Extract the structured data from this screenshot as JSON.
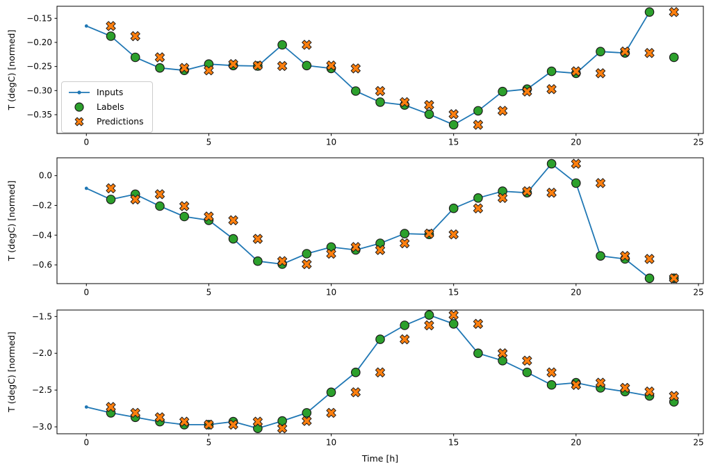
{
  "figure": {
    "xlabel": "Time [h]",
    "colors": {
      "inputs": "#1f77b4",
      "labels": "#2ca02c",
      "predictions": "#ff7f0e",
      "marker_edge": "#1a1a1a",
      "axes": "#000000",
      "legend_border": "#cccccc"
    },
    "legend": {
      "items": [
        "Inputs",
        "Labels",
        "Predictions"
      ],
      "position": "upper left of first subplot"
    }
  },
  "chart_data": [
    {
      "type": "line",
      "subplot": 1,
      "ylabel": "T (degC) [normed]",
      "xlim": [
        -1.2,
        25.2
      ],
      "ylim": [
        -0.389,
        -0.125
      ],
      "grid": false,
      "x_ticks": [
        0,
        5,
        10,
        15,
        20,
        25
      ],
      "x_tick_labels": [
        "0",
        "5",
        "10",
        "15",
        "20",
        "25"
      ],
      "y_ticks": [
        -0.15,
        -0.2,
        -0.25,
        -0.3,
        -0.35
      ],
      "y_tick_labels": [
        "−0.15",
        "−0.20",
        "−0.25",
        "−0.30",
        "−0.35"
      ],
      "series": [
        {
          "name": "Inputs",
          "style": "line-with-dots",
          "x": [
            0,
            1,
            2,
            3,
            4,
            5,
            6,
            7,
            8,
            9,
            10,
            11,
            12,
            13,
            14,
            15,
            16,
            17,
            18,
            19,
            20,
            21,
            22,
            23
          ],
          "y": [
            -0.166,
            -0.187,
            -0.231,
            -0.253,
            -0.258,
            -0.245,
            -0.248,
            -0.249,
            -0.205,
            -0.248,
            -0.254,
            -0.301,
            -0.324,
            -0.33,
            -0.349,
            -0.371,
            -0.342,
            -0.302,
            -0.297,
            -0.26,
            -0.264,
            -0.219,
            -0.222,
            -0.137
          ]
        },
        {
          "name": "Labels",
          "style": "scatter-circle",
          "x": [
            1,
            2,
            3,
            4,
            5,
            6,
            7,
            8,
            9,
            10,
            11,
            12,
            13,
            14,
            15,
            16,
            17,
            18,
            19,
            20,
            21,
            22,
            23,
            24
          ],
          "y": [
            -0.187,
            -0.231,
            -0.253,
            -0.258,
            -0.245,
            -0.248,
            -0.249,
            -0.205,
            -0.248,
            -0.254,
            -0.301,
            -0.324,
            -0.33,
            -0.349,
            -0.371,
            -0.342,
            -0.302,
            -0.297,
            -0.26,
            -0.264,
            -0.219,
            -0.222,
            -0.137,
            -0.231
          ]
        },
        {
          "name": "Predictions",
          "style": "scatter-x",
          "x": [
            1,
            2,
            3,
            4,
            5,
            6,
            7,
            8,
            9,
            10,
            11,
            12,
            13,
            14,
            15,
            16,
            17,
            18,
            19,
            20,
            21,
            22,
            23,
            24
          ],
          "y": [
            -0.166,
            -0.187,
            -0.231,
            -0.253,
            -0.258,
            -0.245,
            -0.248,
            -0.249,
            -0.205,
            -0.248,
            -0.254,
            -0.301,
            -0.324,
            -0.33,
            -0.349,
            -0.371,
            -0.342,
            -0.302,
            -0.297,
            -0.26,
            -0.264,
            -0.219,
            -0.222,
            -0.137
          ]
        }
      ]
    },
    {
      "type": "line",
      "subplot": 2,
      "ylabel": "T (degC) [normed]",
      "xlim": [
        -1.2,
        25.2
      ],
      "ylim": [
        -0.726,
        0.12
      ],
      "grid": false,
      "x_ticks": [
        0,
        5,
        10,
        15,
        20,
        25
      ],
      "x_tick_labels": [
        "0",
        "5",
        "10",
        "15",
        "20",
        "25"
      ],
      "y_ticks": [
        0.0,
        -0.2,
        -0.4,
        -0.6
      ],
      "y_tick_labels": [
        "0.0",
        "−0.2",
        "−0.4",
        "−0.6"
      ],
      "series": [
        {
          "name": "Inputs",
          "style": "line-with-dots",
          "x": [
            0,
            1,
            2,
            3,
            4,
            5,
            6,
            7,
            8,
            9,
            10,
            11,
            12,
            13,
            14,
            15,
            16,
            17,
            18,
            19,
            20,
            21,
            22,
            23
          ],
          "y": [
            -0.085,
            -0.16,
            -0.125,
            -0.205,
            -0.275,
            -0.3,
            -0.425,
            -0.575,
            -0.595,
            -0.525,
            -0.48,
            -0.5,
            -0.455,
            -0.39,
            -0.395,
            -0.22,
            -0.15,
            -0.105,
            -0.115,
            0.08,
            -0.05,
            -0.54,
            -0.56,
            -0.69
          ]
        },
        {
          "name": "Labels",
          "style": "scatter-circle",
          "x": [
            1,
            2,
            3,
            4,
            5,
            6,
            7,
            8,
            9,
            10,
            11,
            12,
            13,
            14,
            15,
            16,
            17,
            18,
            19,
            20,
            21,
            22,
            23,
            24
          ],
          "y": [
            -0.16,
            -0.125,
            -0.205,
            -0.275,
            -0.3,
            -0.425,
            -0.575,
            -0.595,
            -0.525,
            -0.48,
            -0.5,
            -0.455,
            -0.39,
            -0.395,
            -0.22,
            -0.15,
            -0.105,
            -0.115,
            0.08,
            -0.05,
            -0.54,
            -0.56,
            -0.69,
            -0.69
          ]
        },
        {
          "name": "Predictions",
          "style": "scatter-x",
          "x": [
            1,
            2,
            3,
            4,
            5,
            6,
            7,
            8,
            9,
            10,
            11,
            12,
            13,
            14,
            15,
            16,
            17,
            18,
            19,
            20,
            21,
            22,
            23,
            24
          ],
          "y": [
            -0.085,
            -0.16,
            -0.125,
            -0.205,
            -0.275,
            -0.3,
            -0.425,
            -0.575,
            -0.595,
            -0.525,
            -0.48,
            -0.5,
            -0.455,
            -0.39,
            -0.395,
            -0.22,
            -0.15,
            -0.105,
            -0.115,
            0.08,
            -0.05,
            -0.54,
            -0.56,
            -0.69
          ]
        }
      ]
    },
    {
      "type": "line",
      "subplot": 3,
      "ylabel": "T (degC) [normed]",
      "xlim": [
        -1.2,
        25.2
      ],
      "ylim": [
        -3.094,
        -1.412
      ],
      "grid": false,
      "x_ticks": [
        0,
        5,
        10,
        15,
        20,
        25
      ],
      "x_tick_labels": [
        "0",
        "5",
        "10",
        "15",
        "20",
        "25"
      ],
      "y_ticks": [
        -1.5,
        -2.0,
        -2.5,
        -3.0
      ],
      "y_tick_labels": [
        "−1.5",
        "−2.0",
        "−2.5",
        "−3.0"
      ],
      "series": [
        {
          "name": "Inputs",
          "style": "line-with-dots",
          "x": [
            0,
            1,
            2,
            3,
            4,
            5,
            6,
            7,
            8,
            9,
            10,
            11,
            12,
            13,
            14,
            15,
            16,
            17,
            18,
            19,
            20,
            21,
            22,
            23
          ],
          "y": [
            -2.73,
            -2.81,
            -2.87,
            -2.93,
            -2.97,
            -2.97,
            -2.93,
            -3.02,
            -2.92,
            -2.81,
            -2.53,
            -2.26,
            -1.81,
            -1.62,
            -1.48,
            -1.6,
            -2.0,
            -2.1,
            -2.26,
            -2.43,
            -2.4,
            -2.47,
            -2.52,
            -2.58
          ]
        },
        {
          "name": "Labels",
          "style": "scatter-circle",
          "x": [
            1,
            2,
            3,
            4,
            5,
            6,
            7,
            8,
            9,
            10,
            11,
            12,
            13,
            14,
            15,
            16,
            17,
            18,
            19,
            20,
            21,
            22,
            23,
            24
          ],
          "y": [
            -2.81,
            -2.87,
            -2.93,
            -2.97,
            -2.97,
            -2.93,
            -3.02,
            -2.92,
            -2.81,
            -2.53,
            -2.26,
            -1.81,
            -1.62,
            -1.48,
            -1.6,
            -2.0,
            -2.1,
            -2.26,
            -2.43,
            -2.4,
            -2.47,
            -2.52,
            -2.58,
            -2.66
          ]
        },
        {
          "name": "Predictions",
          "style": "scatter-x",
          "x": [
            1,
            2,
            3,
            4,
            5,
            6,
            7,
            8,
            9,
            10,
            11,
            12,
            13,
            14,
            15,
            16,
            17,
            18,
            19,
            20,
            21,
            22,
            23,
            24
          ],
          "y": [
            -2.73,
            -2.81,
            -2.87,
            -2.93,
            -2.97,
            -2.97,
            -2.93,
            -3.02,
            -2.92,
            -2.81,
            -2.53,
            -2.26,
            -1.81,
            -1.62,
            -1.48,
            -1.6,
            -2.0,
            -2.1,
            -2.26,
            -2.43,
            -2.4,
            -2.47,
            -2.52,
            -2.58
          ]
        }
      ]
    }
  ]
}
